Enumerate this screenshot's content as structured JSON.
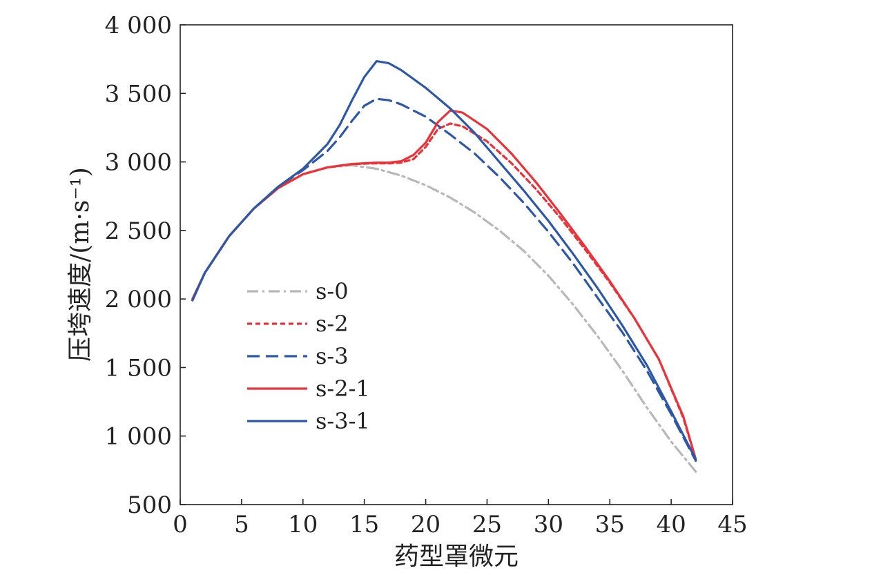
{
  "chart_data": {
    "type": "line",
    "xlabel": "药型罩微元",
    "ylabel": "压垮速度/(m·s⁻¹)",
    "xlim": [
      0,
      45
    ],
    "ylim": [
      500,
      4000
    ],
    "xticks": [
      0,
      5,
      10,
      15,
      20,
      25,
      30,
      35,
      40,
      45
    ],
    "yticks": [
      500,
      1000,
      1500,
      2000,
      2500,
      3000,
      3500,
      4000
    ],
    "xtick_labels": [
      "0",
      "5",
      "10",
      "15",
      "20",
      "25",
      "30",
      "35",
      "40",
      "45"
    ],
    "ytick_labels": [
      "500",
      "1 000",
      "1 500",
      "2 000",
      "2 500",
      "3 000",
      "3 500",
      "4 000"
    ],
    "grid": false,
    "legend_position": "lower-left",
    "series": [
      {
        "name": "s-0",
        "color": "#b8b8b8",
        "dash": "dash-dot",
        "x": [
          1,
          2,
          4,
          6,
          8,
          10,
          12,
          14,
          16,
          18,
          20,
          22,
          24,
          26,
          28,
          30,
          32,
          34,
          36,
          38,
          40,
          42
        ],
        "y": [
          2000,
          2190,
          2460,
          2660,
          2810,
          2910,
          2960,
          2975,
          2950,
          2900,
          2830,
          2740,
          2630,
          2500,
          2350,
          2170,
          1960,
          1730,
          1480,
          1210,
          960,
          740
        ]
      },
      {
        "name": "s-2",
        "color": "#e8333a",
        "dash": "short-dash",
        "x": [
          1,
          2,
          4,
          6,
          8,
          10,
          12,
          14,
          16,
          17,
          18,
          19,
          20,
          21,
          22,
          23,
          25,
          27,
          29,
          31,
          33,
          35,
          37,
          39,
          41,
          42
        ],
        "y": [
          2000,
          2190,
          2460,
          2660,
          2810,
          2910,
          2960,
          2985,
          2990,
          2990,
          2995,
          3020,
          3110,
          3240,
          3280,
          3260,
          3150,
          2990,
          2800,
          2590,
          2360,
          2120,
          1860,
          1560,
          1130,
          830
        ]
      },
      {
        "name": "s-3",
        "color": "#2e58a6",
        "dash": "long-dash",
        "x": [
          1,
          2,
          4,
          6,
          8,
          10,
          11,
          12,
          13,
          14,
          15,
          16,
          17,
          18,
          20,
          22,
          24,
          26,
          28,
          30,
          32,
          34,
          36,
          38,
          40,
          42
        ],
        "y": [
          1990,
          2190,
          2460,
          2660,
          2820,
          2940,
          3010,
          3080,
          3180,
          3300,
          3410,
          3460,
          3450,
          3420,
          3330,
          3200,
          3060,
          2890,
          2700,
          2490,
          2260,
          2010,
          1760,
          1480,
          1160,
          820
        ]
      },
      {
        "name": "s-2-1",
        "color": "#e8333a",
        "dash": "solid",
        "x": [
          1,
          2,
          4,
          6,
          8,
          10,
          12,
          14,
          16,
          17,
          18,
          19,
          20,
          21,
          22,
          23,
          25,
          27,
          29,
          31,
          33,
          35,
          37,
          39,
          41,
          42
        ],
        "y": [
          2000,
          2190,
          2460,
          2660,
          2810,
          2910,
          2960,
          2985,
          2995,
          2995,
          3005,
          3050,
          3140,
          3290,
          3375,
          3360,
          3240,
          3060,
          2850,
          2620,
          2380,
          2130,
          1860,
          1560,
          1140,
          830
        ]
      },
      {
        "name": "s-3-1",
        "color": "#2e58a6",
        "dash": "solid",
        "x": [
          1,
          2,
          4,
          6,
          8,
          10,
          11,
          12,
          13,
          14,
          15,
          16,
          17,
          18,
          20,
          22,
          24,
          26,
          28,
          30,
          32,
          34,
          36,
          38,
          40,
          42
        ],
        "y": [
          1990,
          2190,
          2460,
          2660,
          2820,
          2950,
          3040,
          3130,
          3270,
          3450,
          3620,
          3735,
          3720,
          3670,
          3540,
          3390,
          3210,
          3000,
          2790,
          2570,
          2330,
          2080,
          1810,
          1520,
          1180,
          830
        ]
      }
    ]
  }
}
